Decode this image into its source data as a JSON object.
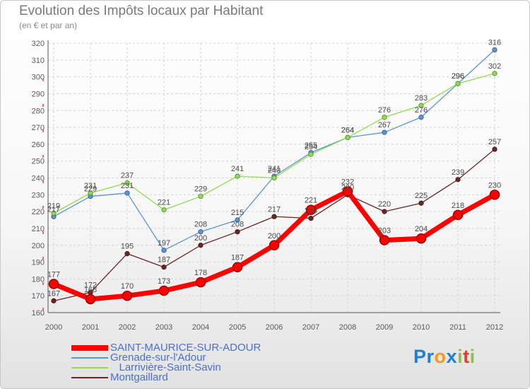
{
  "chart_data": {
    "type": "line",
    "title": "Evolution des Impôts locaux par Habitant",
    "subtitle": "(en € et par an)",
    "xlabel": "",
    "ylabel": "",
    "ylim": [
      160,
      320
    ],
    "yticks": [
      160,
      170,
      180,
      190,
      200,
      210,
      220,
      230,
      240,
      250,
      260,
      270,
      280,
      290,
      300,
      310,
      320
    ],
    "categories": [
      "2000",
      "2001",
      "2002",
      "2003",
      "2004",
      "2005",
      "2006",
      "2007",
      "2008",
      "2009",
      "2010",
      "2011",
      "2012"
    ],
    "series": [
      {
        "name": "Grenade-sur-l'Adour",
        "color": "#5a95d5",
        "values": [
          217,
          229,
          231,
          197,
          208,
          215,
          241,
          255,
          264,
          267,
          276,
          296,
          316
        ]
      },
      {
        "name": "Larrivière-Saint-Savin",
        "color": "#8fdc4e",
        "values": [
          219,
          231,
          237,
          221,
          229,
          241,
          240,
          254,
          264,
          276,
          283,
          296,
          302
        ]
      },
      {
        "name": "Montgaillard",
        "color": "#6b2525",
        "values": [
          167,
          172,
          195,
          187,
          200,
          208,
          217,
          216,
          230,
          220,
          225,
          239,
          257
        ]
      },
      {
        "name": "SAINT-MAURICE-SUR-ADOUR",
        "color": "#ff0000",
        "values": [
          177,
          168,
          170,
          173,
          178,
          187,
          200,
          221,
          232,
          203,
          204,
          218,
          230
        ]
      }
    ],
    "legend": {
      "position": "bottom-left",
      "items": [
        {
          "label": "SAINT-MAURICE-SUR-ADOUR",
          "color": "#ff0000"
        },
        {
          "label": "Grenade-sur-l'Adour",
          "color": "#5a95d5"
        },
        {
          "label": "   Larrivière-Saint-Savin",
          "color": "#8fdc4e"
        },
        {
          "label": "Montgaillard",
          "color": "#6b2525"
        }
      ]
    }
  },
  "logo": {
    "letters": [
      {
        "ch": "P",
        "color": "#1f7fd0"
      },
      {
        "ch": "r",
        "color": "#1f7fd0"
      },
      {
        "ch": "o",
        "color": "#f29a1c"
      },
      {
        "ch": "x",
        "color": "#1f7fd0"
      },
      {
        "ch": "i",
        "color": "#8ac34a"
      },
      {
        "ch": "t",
        "color": "#e23c2c"
      },
      {
        "ch": "i",
        "color": "#8ac34a"
      }
    ]
  }
}
